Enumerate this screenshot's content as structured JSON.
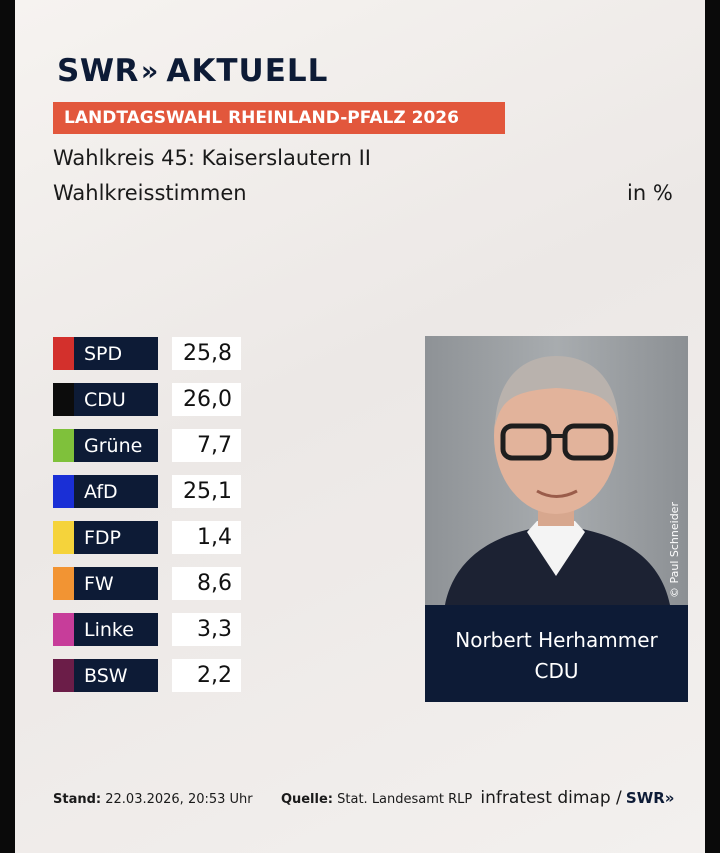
{
  "header": {
    "logo_swr": "SWR",
    "logo_chevrons": "»",
    "logo_aktuell": "AKTUELL",
    "banner": "LANDTAGSWAHL RHEINLAND-PFALZ 2026",
    "subtitle": "Wahlkreis 45: Kaiserslautern II",
    "subsubtitle": "Wahlkreisstimmen",
    "unit": "in %"
  },
  "chart_data": {
    "type": "table",
    "title": "Wahlkreis 45: Kaiserslautern II",
    "subtitle": "Wahlkreisstimmen",
    "unit": "in %",
    "categories": [
      "SPD",
      "CDU",
      "Grüne",
      "AfD",
      "FDP",
      "FW",
      "Linke",
      "BSW"
    ],
    "values": [
      "25,8",
      "26,0",
      "7,7",
      "25,1",
      "1,4",
      "8,6",
      "3,3",
      "2,2"
    ],
    "colors": [
      "#d3302c",
      "#0c0c0c",
      "#7fc13b",
      "#1a2fd6",
      "#f5d33b",
      "#f29433",
      "#c73d9a",
      "#6b1d48"
    ]
  },
  "winner": {
    "name": "Norbert Herhammer",
    "party": "CDU",
    "photo_credit": "© Paul Schneider"
  },
  "footer": {
    "stand_label": "Stand:",
    "stand_value": "22.03.2026, 20:53 Uhr",
    "quelle_label": "Quelle:",
    "quelle_value": "Stat. Landesamt RLP",
    "brand": "infratest dimap /",
    "swr": "SWR»"
  }
}
